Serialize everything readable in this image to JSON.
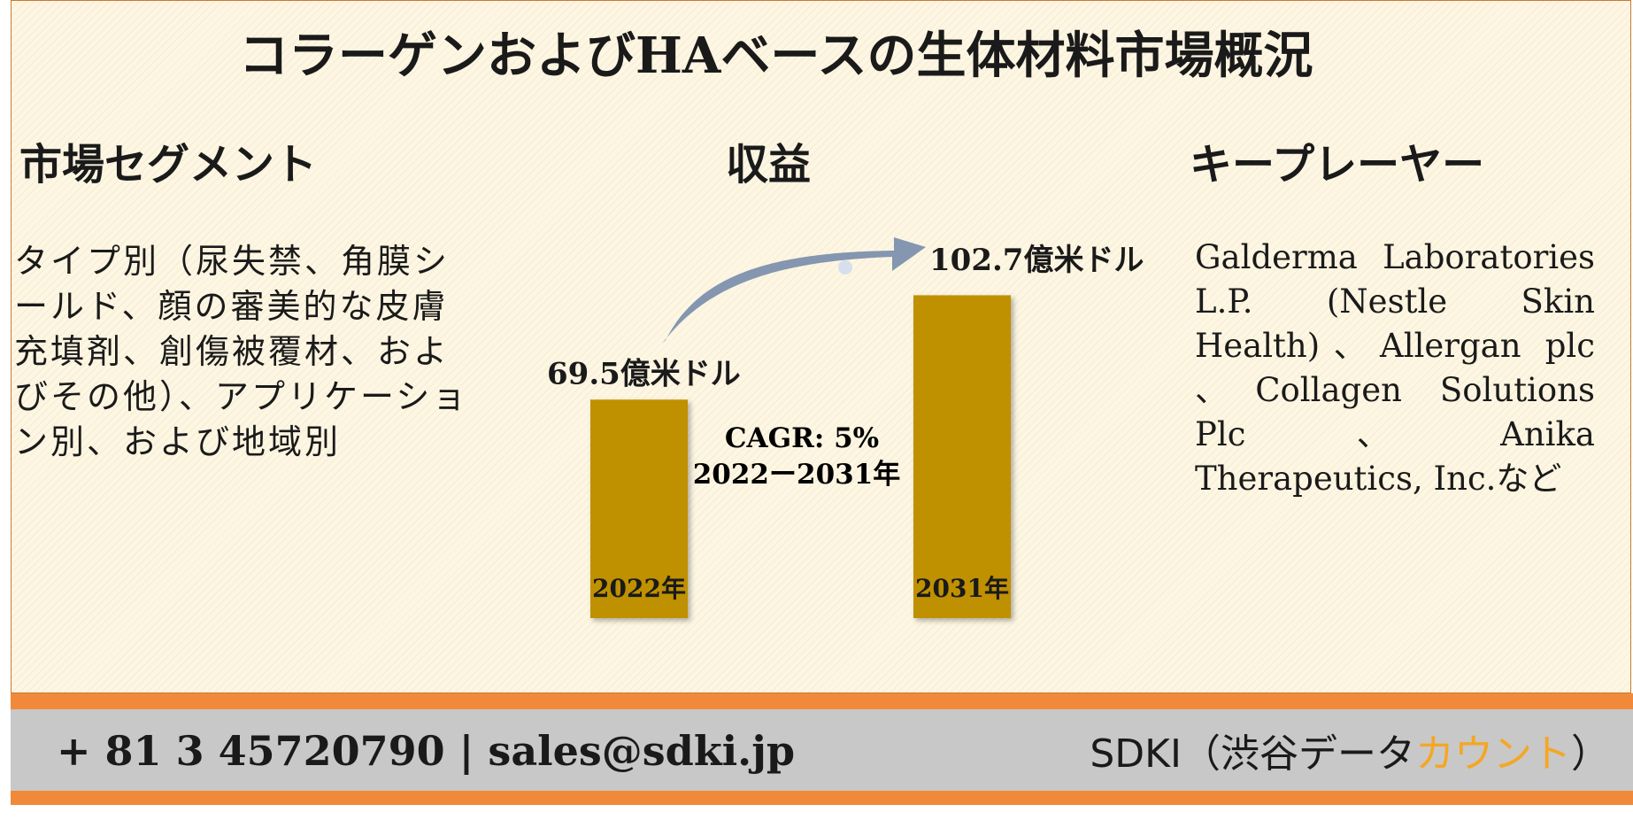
{
  "title": "コラーゲンおよびHAベースの生体材料市場概況",
  "sections": {
    "segment": {
      "heading": "市場セグメント",
      "text": "タイプ別（尿失禁、角膜シールド、顔の審美的な皮膚充填剤、創傷被覆材、およびその他）、アプリケーション別、および地域別"
    },
    "revenue": {
      "heading": "収益"
    },
    "key_players": {
      "heading": "キープレーヤー",
      "text": "Galderma Laboratories L.P. (Nestle Skin Health)、Allergan plc 、Collagen Solutions Plc、Anika Therapeutics, Inc.など"
    }
  },
  "chart_data": {
    "type": "bar",
    "categories": [
      "2022年",
      "2031年"
    ],
    "values": [
      69.5,
      102.7
    ],
    "value_labels": [
      "69.5億米ドル",
      "102.7億米ドル"
    ],
    "annotation": {
      "line1": "CAGR: 5%",
      "line2": "2022ー2031年"
    },
    "bar_color": "#bf9000",
    "arrow_color": "#8496b0"
  },
  "footer": {
    "contact": "+ 81 3 45720790 | sales@sdki.jp",
    "brand_main": "SDKI（渋谷データ",
    "brand_accent": "カウント",
    "brand_end": "）"
  }
}
